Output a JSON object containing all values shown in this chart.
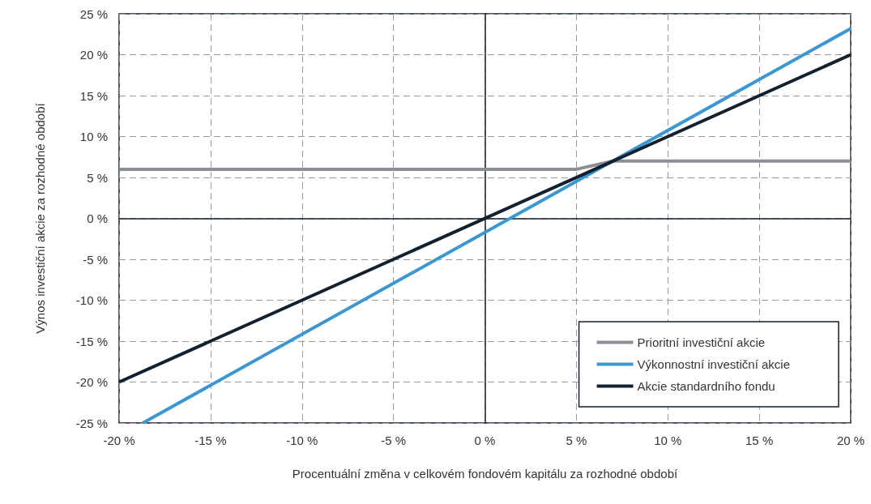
{
  "chart_data": {
    "type": "line",
    "xlabel": "Procentuální změna v celkovém fondovém kapitálu za rozhodné období",
    "ylabel": "Výnos investiční akcie za rozhodné období",
    "series": [
      {
        "name": "Prioritní investiční akcie",
        "color": "#8c8f93",
        "x": [
          -20,
          5,
          7,
          20
        ],
        "values": [
          6,
          6,
          7,
          7
        ]
      },
      {
        "name": "Výkonnostní investiční akcie",
        "color": "#3a97d4",
        "x": [
          -18.7,
          20
        ],
        "values": [
          -25,
          23.2
        ]
      },
      {
        "name": "Akcie standardního fondu",
        "color": "#13212f",
        "x": [
          -20,
          20
        ],
        "values": [
          -20,
          20
        ]
      }
    ],
    "xlim": [
      -20,
      20
    ],
    "ylim": [
      -25,
      25
    ],
    "xticks": [
      {
        "value": -20,
        "label": "-20 %"
      },
      {
        "value": -15,
        "label": "-15 %"
      },
      {
        "value": -10,
        "label": "-10 %"
      },
      {
        "value": -5,
        "label": "-5 %"
      },
      {
        "value": 0,
        "label": "0 %"
      },
      {
        "value": 5,
        "label": "5 %"
      },
      {
        "value": 10,
        "label": "10 %"
      },
      {
        "value": 15,
        "label": "15 %"
      },
      {
        "value": 20,
        "label": "20 %"
      }
    ],
    "yticks": [
      {
        "value": -25,
        "label": "-25 %"
      },
      {
        "value": -20,
        "label": "-20 %"
      },
      {
        "value": -15,
        "label": "-15 %"
      },
      {
        "value": -10,
        "label": "-10 %"
      },
      {
        "value": -5,
        "label": "-5 %"
      },
      {
        "value": 0,
        "label": "0 %"
      },
      {
        "value": 5,
        "label": "5 %"
      },
      {
        "value": 10,
        "label": "10 %"
      },
      {
        "value": 15,
        "label": "15 %"
      },
      {
        "value": 20,
        "label": "20 %"
      },
      {
        "value": 25,
        "label": "25 %"
      }
    ],
    "grid": true,
    "legend": "bottom right",
    "marker": "none",
    "line_style": "solid"
  }
}
